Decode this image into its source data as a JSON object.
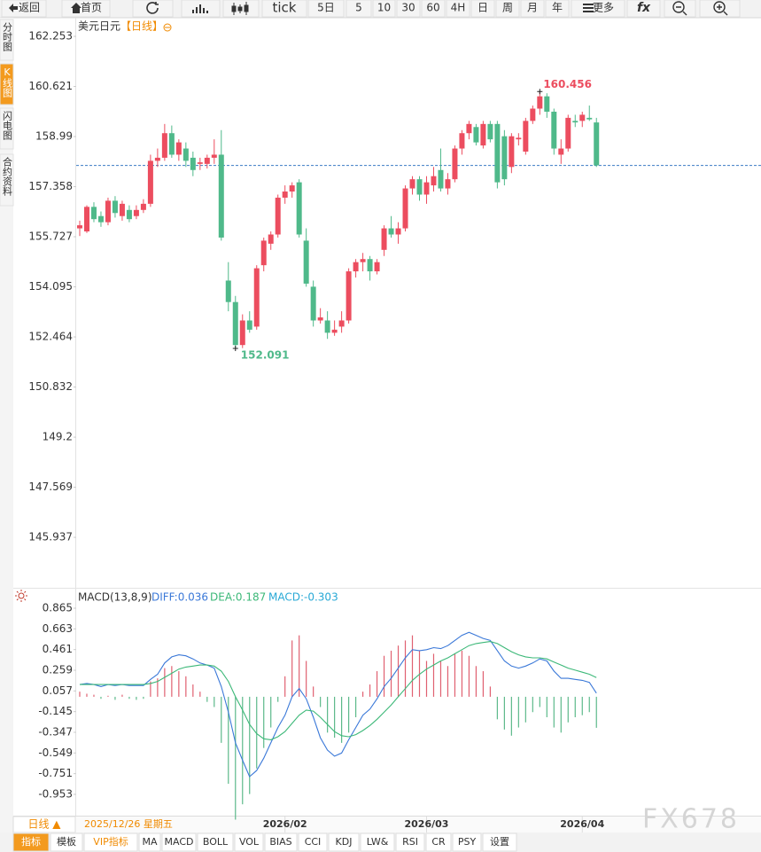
{
  "toolbar": [
    "返回",
    "首页",
    "tick",
    "5日",
    "5",
    "10",
    "30",
    "60",
    "4H",
    "日",
    "周",
    "月",
    "年",
    "更多",
    "fx"
  ],
  "sidebar": [
    "分时图",
    "K线图",
    "闪电图",
    "合约资料"
  ],
  "period_selector": "日线 ▲",
  "footer_tabs": [
    "指标",
    "模板",
    "VIP指标",
    "MA",
    "MACD",
    "BOLL",
    "VOL",
    "BIAS",
    "CCI",
    "KDJ",
    "LW&",
    "RSI",
    "CR",
    "PSY",
    "设置"
  ],
  "watermark": "FX678",
  "chart_data": [
    {
      "type": "candlestick",
      "title": "美元日元",
      "period": "【日线】",
      "up_color": "#ec4d5f",
      "down_color": "#4fb98a",
      "last_line_color": "#3b7bc4",
      "xlim": [
        -0.5,
        96.25
      ],
      "ylim": [
        144.38,
        162.86
      ],
      "yticks": [
        162.253,
        160.621,
        158.99,
        157.358,
        155.727,
        154.095,
        152.464,
        150.832,
        149.2,
        147.569,
        145.937
      ],
      "open": [
        156.0,
        155.9,
        156.7,
        156.4,
        156.2,
        156.9,
        156.4,
        156.6,
        156.4,
        156.6,
        156.8,
        158.2,
        158.3,
        159.1,
        158.4,
        158.6,
        158.3,
        158.1,
        158.1,
        158.3,
        158.4,
        154.3,
        153.6,
        152.2,
        153.0,
        152.8,
        154.8,
        155.5,
        155.8,
        157.0,
        157.2,
        157.5,
        155.6,
        154.1,
        153.0,
        153.0,
        152.6,
        152.8,
        153.0,
        154.6,
        154.9,
        155.0,
        154.6,
        155.3,
        156.0,
        155.8,
        156.0,
        157.3,
        157.6,
        157.1,
        157.4,
        157.9,
        157.3,
        157.6,
        158.6,
        159.1,
        159.3,
        158.7,
        159.4,
        159.4,
        159.0,
        158.0,
        158.9,
        158.5,
        159.5,
        159.9,
        160.3,
        159.8,
        158.4,
        158.6,
        159.5,
        159.5,
        159.6,
        159.45
      ],
      "high": [
        156.25,
        156.75,
        156.85,
        156.55,
        157.0,
        157.05,
        156.9,
        156.75,
        156.75,
        156.95,
        158.4,
        158.6,
        159.4,
        159.35,
        158.9,
        158.8,
        158.5,
        158.3,
        158.4,
        158.9,
        159.2,
        154.9,
        153.8,
        153.2,
        153.3,
        154.8,
        155.7,
        155.9,
        157.1,
        157.4,
        157.5,
        157.6,
        156.0,
        154.3,
        153.4,
        153.3,
        153.0,
        153.3,
        154.7,
        155.0,
        155.2,
        155.1,
        155.0,
        156.1,
        156.4,
        156.2,
        157.4,
        157.7,
        157.7,
        157.7,
        158.0,
        158.6,
        157.8,
        158.7,
        159.2,
        159.5,
        159.4,
        159.5,
        159.5,
        159.5,
        159.2,
        159.1,
        159.1,
        159.6,
        160.0,
        160.456,
        160.4,
        159.9,
        158.9,
        159.7,
        159.7,
        159.8,
        160.0,
        159.6
      ],
      "low": [
        155.75,
        155.85,
        156.2,
        156.05,
        156.1,
        156.35,
        156.25,
        156.2,
        156.3,
        156.5,
        156.7,
        158.0,
        158.2,
        158.3,
        158.2,
        158.0,
        157.7,
        157.9,
        157.95,
        158.1,
        155.6,
        153.3,
        152.091,
        152.1,
        152.6,
        152.7,
        154.6,
        155.3,
        155.7,
        156.8,
        157.0,
        155.7,
        154.1,
        152.8,
        152.9,
        152.4,
        152.5,
        152.6,
        152.9,
        154.4,
        154.6,
        154.3,
        154.5,
        155.1,
        155.7,
        155.5,
        155.9,
        157.1,
        156.9,
        156.8,
        157.2,
        157.2,
        157.1,
        157.5,
        158.4,
        158.9,
        158.7,
        158.6,
        158.8,
        157.3,
        157.4,
        157.8,
        158.7,
        158.4,
        159.4,
        159.7,
        159.6,
        158.4,
        158.1,
        158.5,
        159.3,
        159.3,
        159.5,
        158.0
      ],
      "close": [
        156.1,
        156.7,
        156.3,
        156.2,
        156.9,
        156.5,
        156.8,
        156.3,
        156.6,
        156.8,
        158.2,
        158.3,
        159.1,
        158.4,
        158.8,
        158.2,
        157.9,
        158.15,
        158.3,
        158.4,
        155.7,
        153.6,
        152.2,
        153.0,
        152.7,
        154.7,
        155.6,
        155.8,
        157.0,
        157.2,
        157.4,
        155.8,
        154.2,
        153.0,
        153.1,
        152.6,
        152.7,
        153.0,
        154.6,
        154.9,
        155.0,
        154.6,
        154.9,
        156.0,
        155.8,
        156.0,
        157.3,
        157.6,
        157.1,
        157.5,
        157.7,
        157.3,
        157.6,
        158.6,
        159.1,
        159.4,
        158.8,
        159.4,
        158.9,
        157.5,
        157.6,
        159.0,
        158.95,
        159.5,
        159.9,
        160.3,
        159.8,
        158.6,
        158.6,
        159.6,
        159.45,
        159.7,
        159.55,
        158.05
      ]
    },
    {
      "type": "macd",
      "title": "MACD(13,8,9)",
      "date_label": "2025/12/26 星期五",
      "xlim": [
        -0.5,
        96.25
      ],
      "ylim": [
        -1.161,
        1.047
      ],
      "yticks": [
        0.865,
        0.663,
        0.461,
        0.259,
        0.057,
        -0.145,
        -0.347,
        -0.549,
        -0.751,
        -0.953
      ],
      "xticks": [
        {
          "value": 29,
          "label": "2026/02"
        },
        {
          "value": 49,
          "label": "2026/03"
        },
        {
          "value": 71,
          "label": "2026/04"
        }
      ],
      "series": [
        {
          "label": "DIFF:0.036",
          "style": "line",
          "color": "#3a78d8",
          "values": [
            0.12,
            0.13,
            0.12,
            0.1,
            0.12,
            0.11,
            0.12,
            0.11,
            0.11,
            0.11,
            0.17,
            0.22,
            0.33,
            0.39,
            0.41,
            0.4,
            0.37,
            0.33,
            0.31,
            0.28,
            0.1,
            -0.15,
            -0.45,
            -0.62,
            -0.78,
            -0.72,
            -0.6,
            -0.45,
            -0.3,
            -0.18,
            0.0,
            0.08,
            -0.02,
            -0.2,
            -0.4,
            -0.52,
            -0.58,
            -0.55,
            -0.42,
            -0.3,
            -0.18,
            -0.12,
            -0.02,
            0.1,
            0.18,
            0.28,
            0.38,
            0.46,
            0.45,
            0.46,
            0.48,
            0.47,
            0.5,
            0.55,
            0.6,
            0.63,
            0.6,
            0.57,
            0.55,
            0.45,
            0.35,
            0.3,
            0.28,
            0.3,
            0.33,
            0.37,
            0.35,
            0.25,
            0.18,
            0.18,
            0.17,
            0.16,
            0.14,
            0.036
          ]
        },
        {
          "label": "DEA:0.187",
          "style": "line",
          "color": "#3cb878",
          "values": [
            0.12,
            0.12,
            0.12,
            0.12,
            0.12,
            0.12,
            0.12,
            0.12,
            0.12,
            0.12,
            0.13,
            0.15,
            0.19,
            0.23,
            0.27,
            0.29,
            0.3,
            0.31,
            0.31,
            0.3,
            0.25,
            0.15,
            0.0,
            -0.13,
            -0.27,
            -0.36,
            -0.41,
            -0.42,
            -0.39,
            -0.34,
            -0.26,
            -0.18,
            -0.13,
            -0.14,
            -0.2,
            -0.27,
            -0.34,
            -0.38,
            -0.39,
            -0.37,
            -0.33,
            -0.28,
            -0.22,
            -0.15,
            -0.08,
            0.0,
            0.08,
            0.16,
            0.22,
            0.27,
            0.31,
            0.35,
            0.38,
            0.42,
            0.46,
            0.5,
            0.52,
            0.53,
            0.54,
            0.52,
            0.48,
            0.44,
            0.41,
            0.39,
            0.38,
            0.38,
            0.37,
            0.34,
            0.31,
            0.28,
            0.26,
            0.24,
            0.22,
            0.187
          ]
        },
        {
          "label": "MACD:-0.303",
          "style": "bar",
          "color": "#29a9d6",
          "up_color": "#e06070",
          "down_color": "#5cb98a",
          "values": [
            0.05,
            0.03,
            0.02,
            -0.02,
            0.01,
            -0.03,
            0.02,
            -0.02,
            -0.03,
            -0.02,
            0.15,
            0.18,
            0.28,
            0.3,
            0.25,
            0.2,
            0.12,
            0.05,
            -0.05,
            -0.1,
            -0.45,
            -0.85,
            -1.2,
            -1.05,
            -0.95,
            -0.7,
            -0.5,
            -0.3,
            -0.05,
            0.2,
            0.55,
            0.6,
            0.35,
            0.1,
            -0.1,
            -0.35,
            -0.4,
            -0.45,
            -0.35,
            -0.2,
            0.05,
            0.12,
            0.25,
            0.4,
            0.45,
            0.5,
            0.55,
            0.6,
            0.45,
            0.35,
            0.42,
            0.35,
            0.3,
            0.42,
            0.45,
            0.4,
            0.3,
            0.25,
            0.1,
            -0.22,
            -0.32,
            -0.38,
            -0.3,
            -0.25,
            -0.15,
            -0.1,
            -0.2,
            -0.3,
            -0.35,
            -0.25,
            -0.2,
            -0.18,
            -0.15,
            -0.303
          ]
        }
      ]
    }
  ]
}
